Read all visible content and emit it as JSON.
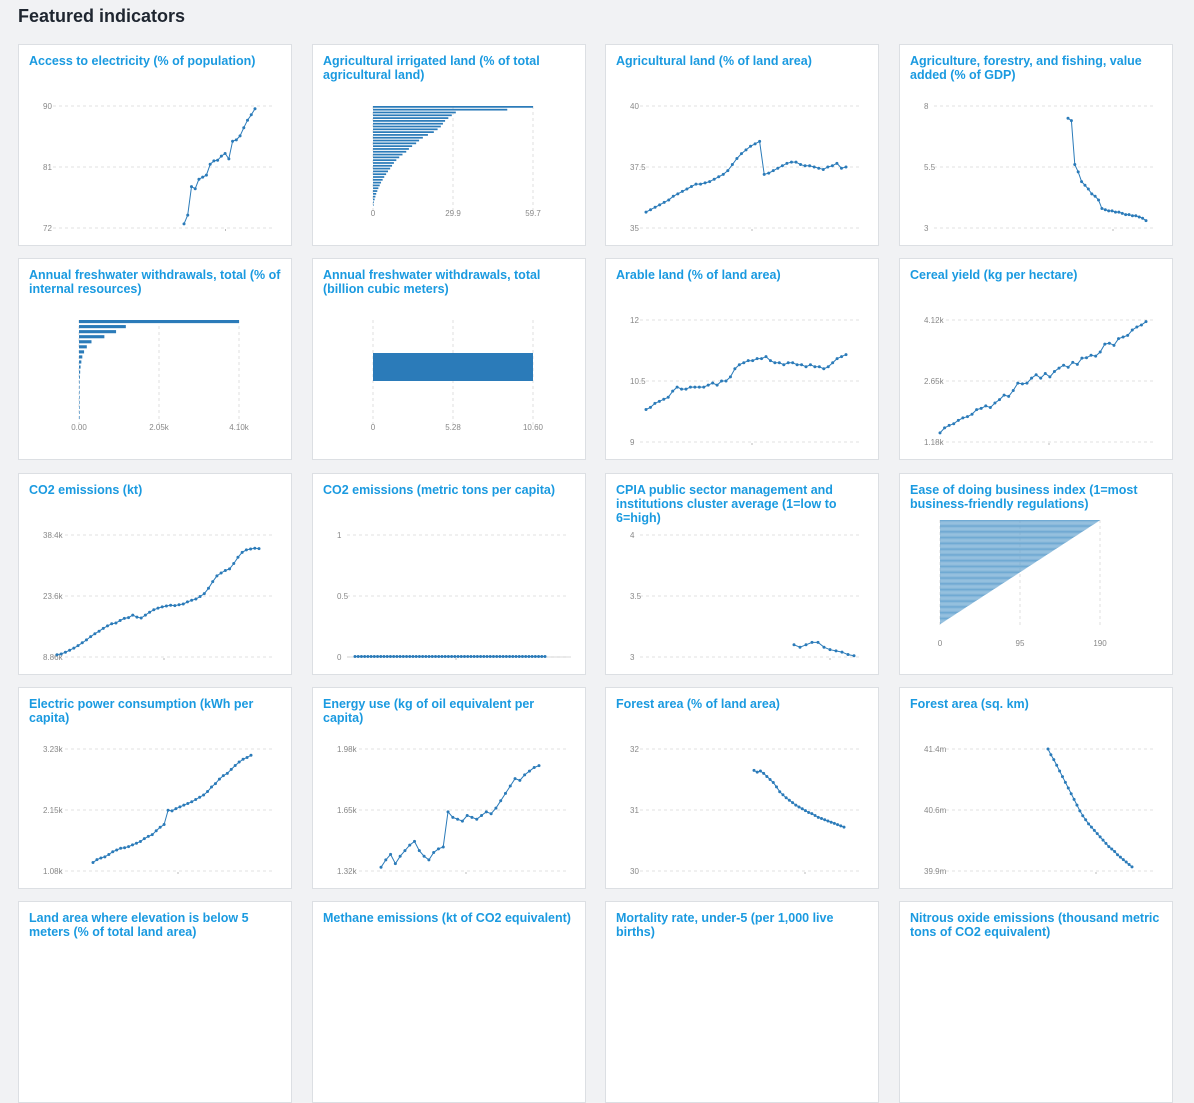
{
  "page": {
    "title": "Featured indicators"
  },
  "colors": {
    "mark": "#2b7bb9",
    "grid": "#d8d8d8",
    "title": "#1a9ae0"
  },
  "chart_data": [
    {
      "type": "line",
      "title": "Access to electricity (% of population)",
      "yticks": [
        "90",
        "81",
        "72"
      ],
      "ylim": [
        72,
        90
      ],
      "values": [
        72.6,
        73.9,
        78.1,
        77.8,
        79.2,
        79.5,
        79.8,
        81.4,
        81.9,
        82.0,
        82.6,
        83.0,
        82.2,
        84.8,
        85.0,
        85.6,
        86.8,
        87.9,
        88.7,
        89.6
      ]
    },
    {
      "type": "bar",
      "orientation": "horizontal",
      "title": "Agricultural irrigated land (% of total agricultural land)",
      "xticks": [
        "0",
        "29.9",
        "59.7"
      ],
      "xlim": [
        0,
        59.7
      ],
      "values": [
        59.7,
        50.1,
        30.9,
        29.4,
        28.1,
        26.9,
        26.1,
        25.3,
        24.1,
        22.7,
        20.5,
        18.6,
        17.2,
        16.1,
        14.6,
        13.4,
        12.4,
        11.0,
        9.8,
        8.7,
        7.8,
        7.1,
        6.4,
        5.6,
        4.9,
        4.2,
        3.6,
        3.0,
        2.5,
        2.0,
        1.6,
        1.2,
        0.9,
        0.6,
        0.3,
        0.1
      ]
    },
    {
      "type": "line",
      "title": "Agricultural land (% of land area)",
      "yticks": [
        "40",
        "37.5",
        "35"
      ],
      "ylim": [
        35,
        40
      ],
      "values": [
        35.65,
        35.75,
        35.85,
        35.95,
        36.05,
        36.15,
        36.3,
        36.4,
        36.5,
        36.6,
        36.7,
        36.8,
        36.8,
        36.85,
        36.9,
        37.0,
        37.1,
        37.2,
        37.35,
        37.6,
        37.85,
        38.05,
        38.2,
        38.35,
        38.45,
        38.55,
        37.2,
        37.25,
        37.35,
        37.45,
        37.55,
        37.65,
        37.7,
        37.7,
        37.6,
        37.55,
        37.55,
        37.5,
        37.45,
        37.4,
        37.5,
        37.55,
        37.65,
        37.45,
        37.5
      ]
    },
    {
      "type": "line",
      "title": "Agriculture, forestry, and fishing, value added (% of GDP)",
      "yticks": [
        "8",
        "5.5",
        "3"
      ],
      "ylim": [
        3,
        8
      ],
      "values": [
        7.5,
        7.4,
        5.6,
        5.3,
        4.9,
        4.75,
        4.6,
        4.4,
        4.3,
        4.15,
        3.8,
        3.75,
        3.7,
        3.7,
        3.65,
        3.65,
        3.6,
        3.55,
        3.55,
        3.5,
        3.5,
        3.45,
        3.4,
        3.3
      ]
    },
    {
      "type": "bar",
      "orientation": "horizontal",
      "title": "Annual freshwater withdrawals, total (% of internal resources)",
      "xticks": [
        "0.00",
        "2.05k",
        "4.10k"
      ],
      "xlim": [
        0,
        4100
      ],
      "values": [
        4100,
        1200,
        950,
        650,
        320,
        200,
        130,
        85,
        60,
        40,
        30,
        22,
        16,
        12,
        9,
        7,
        5,
        3,
        2,
        1
      ]
    },
    {
      "type": "bar",
      "orientation": "horizontal",
      "title": "Annual freshwater withdrawals, total (billion cubic meters)",
      "xticks": [
        "0",
        "5.28",
        "10.60"
      ],
      "xlim": [
        0,
        10.6
      ],
      "values": [
        10.6
      ]
    },
    {
      "type": "line",
      "title": "Arable land (% of land area)",
      "yticks": [
        "12",
        "10.5",
        "9"
      ],
      "ylim": [
        9,
        12
      ],
      "values": [
        9.8,
        9.85,
        9.95,
        10.0,
        10.05,
        10.1,
        10.25,
        10.35,
        10.3,
        10.3,
        10.35,
        10.35,
        10.35,
        10.35,
        10.4,
        10.45,
        10.4,
        10.5,
        10.5,
        10.6,
        10.8,
        10.9,
        10.95,
        11.0,
        11.0,
        11.05,
        11.05,
        11.1,
        11.0,
        10.95,
        10.95,
        10.9,
        10.95,
        10.95,
        10.9,
        10.9,
        10.85,
        10.9,
        10.85,
        10.85,
        10.8,
        10.85,
        10.95,
        11.05,
        11.1,
        11.15
      ]
    },
    {
      "type": "line",
      "title": "Cereal yield (kg per hectare)",
      "yticks": [
        "4.12k",
        "2.65k",
        "1.18k"
      ],
      "ylim": [
        1180,
        4120
      ],
      "values": [
        1400,
        1520,
        1580,
        1620,
        1700,
        1760,
        1790,
        1850,
        1960,
        1990,
        2050,
        2010,
        2120,
        2200,
        2310,
        2280,
        2420,
        2600,
        2580,
        2600,
        2720,
        2800,
        2720,
        2830,
        2750,
        2880,
        2960,
        3030,
        2980,
        3100,
        3050,
        3200,
        3210,
        3270,
        3250,
        3350,
        3540,
        3560,
        3510,
        3670,
        3710,
        3750,
        3880,
        3950,
        4000,
        4080
      ]
    },
    {
      "type": "line",
      "title": "CO2 emissions (kt)",
      "yticks": [
        "38.4k",
        "23.6k",
        "8.86k"
      ],
      "ylim": [
        8860,
        38400
      ],
      "values": [
        9400,
        9600,
        10000,
        10500,
        11000,
        11600,
        12300,
        13000,
        13800,
        14500,
        15100,
        15800,
        16400,
        16900,
        17100,
        17700,
        18200,
        18400,
        19000,
        18500,
        18300,
        19000,
        19700,
        20300,
        20700,
        21000,
        21200,
        21400,
        21300,
        21500,
        21700,
        22200,
        22600,
        22900,
        23500,
        24200,
        25500,
        27100,
        28500,
        29200,
        29800,
        30200,
        31500,
        33000,
        34200,
        34800,
        35000,
        35200,
        35100
      ]
    },
    {
      "type": "line",
      "title": "CO2 emissions (metric tons per capita)",
      "yticks": [
        "1",
        "0.5",
        "0"
      ],
      "ylim": [
        0,
        1
      ],
      "values": [
        0.004,
        0.004,
        0.004,
        0.004,
        0.004,
        0.004,
        0.004,
        0.004,
        0.004,
        0.004,
        0.004,
        0.004,
        0.004,
        0.004,
        0.004,
        0.004,
        0.004,
        0.004,
        0.004,
        0.004,
        0.004,
        0.004,
        0.004,
        0.004,
        0.004,
        0.004,
        0.004,
        0.004,
        0.004,
        0.004,
        0.004,
        0.004,
        0.004,
        0.004,
        0.004,
        0.004,
        0.004,
        0.004,
        0.004,
        0.004,
        0.004,
        0.004,
        0.004,
        0.004,
        0.004,
        0.004,
        0.004,
        0.004,
        0.004,
        0.004,
        0.004,
        0.004,
        0.004,
        0.004,
        0.004,
        0.004,
        0.004,
        0.004,
        0.004,
        0.004
      ]
    },
    {
      "type": "line",
      "title": "CPIA public sector management and institutions cluster average (1=low to 6=high)",
      "yticks": [
        "4",
        "3.5",
        "3"
      ],
      "ylim": [
        3,
        4
      ],
      "values": [
        3.1,
        3.08,
        3.1,
        3.12,
        3.12,
        3.08,
        3.06,
        3.05,
        3.04,
        3.02,
        3.01
      ]
    },
    {
      "type": "bar",
      "orientation": "horizontal",
      "title": "Ease of doing business index (1=most business-friendly regulations)",
      "xticks": [
        "0",
        "95",
        "190"
      ],
      "xlim": [
        0,
        190
      ],
      "count": 190
    },
    {
      "type": "line",
      "title": "Electric power consumption (kWh per capita)",
      "yticks": [
        "3.23k",
        "2.15k",
        "1.08k"
      ],
      "ylim": [
        1080,
        3230
      ],
      "values": [
        1230,
        1280,
        1310,
        1330,
        1370,
        1420,
        1450,
        1480,
        1490,
        1510,
        1540,
        1570,
        1600,
        1650,
        1690,
        1720,
        1790,
        1850,
        1900,
        2150,
        2140,
        2180,
        2210,
        2240,
        2270,
        2300,
        2340,
        2380,
        2420,
        2480,
        2560,
        2620,
        2700,
        2760,
        2800,
        2870,
        2940,
        3000,
        3050,
        3080,
        3120
      ]
    },
    {
      "type": "line",
      "title": "Energy use (kg of oil equivalent per capita)",
      "yticks": [
        "1.98k",
        "1.65k",
        "1.32k"
      ],
      "ylim": [
        1320,
        1980
      ],
      "values": [
        1340,
        1380,
        1410,
        1360,
        1400,
        1430,
        1460,
        1480,
        1430,
        1400,
        1380,
        1420,
        1440,
        1450,
        1640,
        1610,
        1600,
        1590,
        1620,
        1610,
        1600,
        1620,
        1640,
        1630,
        1660,
        1700,
        1740,
        1780,
        1820,
        1810,
        1840,
        1860,
        1880,
        1890
      ]
    },
    {
      "type": "line",
      "title": "Forest area (% of land area)",
      "yticks": [
        "32",
        "31",
        "30"
      ],
      "ylim": [
        30,
        32
      ],
      "values": [
        31.65,
        31.62,
        31.64,
        31.6,
        31.55,
        31.5,
        31.45,
        31.38,
        31.3,
        31.25,
        31.2,
        31.16,
        31.12,
        31.08,
        31.05,
        31.02,
        30.99,
        30.96,
        30.94,
        30.91,
        30.88,
        30.86,
        30.84,
        30.82,
        30.8,
        30.78,
        30.76,
        30.74,
        30.72
      ]
    },
    {
      "type": "line",
      "title": "Forest area (sq. km)",
      "yticks": [
        "41.4m",
        "40.6m",
        "39.9m"
      ],
      "ylim": [
        39.9,
        41.4
      ],
      "values": [
        41.4,
        41.33,
        41.27,
        41.2,
        41.13,
        41.06,
        40.99,
        40.92,
        40.85,
        40.78,
        40.71,
        40.64,
        40.58,
        40.53,
        40.48,
        40.44,
        40.4,
        40.36,
        40.32,
        40.28,
        40.24,
        40.2,
        40.17,
        40.14,
        40.1,
        40.07,
        40.04,
        40.01,
        39.98,
        39.95
      ]
    },
    {
      "type": "line",
      "title": "Land area where elevation is below 5 meters (% of total land area)",
      "yticks": [],
      "values": []
    },
    {
      "type": "line",
      "title": "Methane emissions (kt of CO2 equivalent)",
      "yticks": [],
      "values": []
    },
    {
      "type": "line",
      "title": "Mortality rate, under-5 (per 1,000 live births)",
      "yticks": [],
      "values": []
    },
    {
      "type": "line",
      "title": "Nitrous oxide emissions (thousand metric tons of CO2 equivalent)",
      "yticks": [],
      "values": []
    }
  ]
}
